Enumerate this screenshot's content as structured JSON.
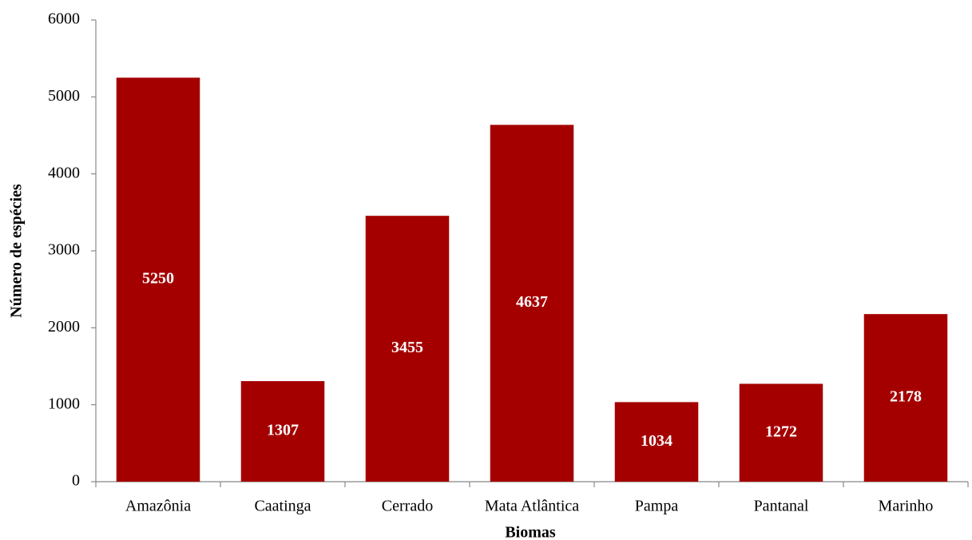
{
  "chart_data": {
    "type": "bar",
    "x_label": "Biomas",
    "y_label": "Número de espécies",
    "categories": [
      "Amazônia",
      "Caatinga",
      "Cerrado",
      "Mata Atlântica",
      "Pampa",
      "Pantanal",
      "Marinho"
    ],
    "values": [
      5250,
      1307,
      3455,
      4637,
      1034,
      1272,
      2178
    ],
    "color": "#a50000",
    "ylim": [
      0,
      6000
    ],
    "yticks": [
      0,
      1000,
      2000,
      3000,
      4000,
      5000,
      6000
    ],
    "grid": false
  }
}
